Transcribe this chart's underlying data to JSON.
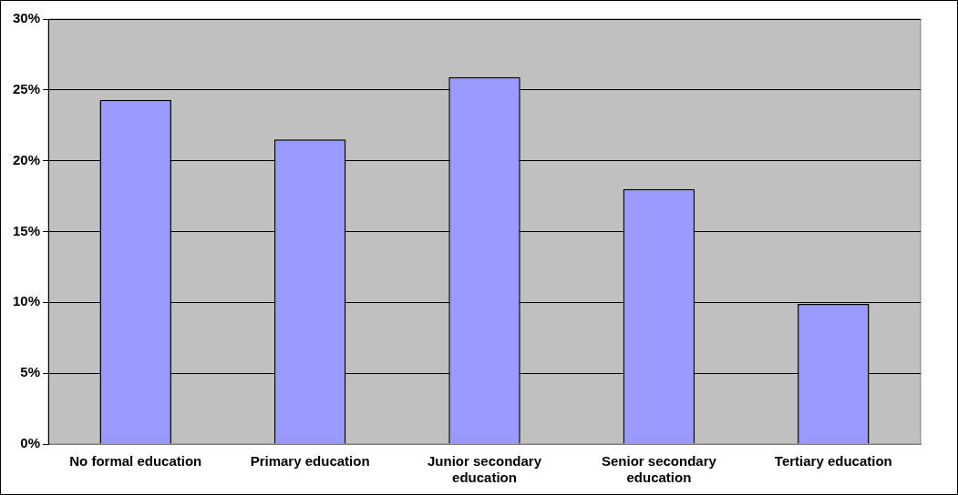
{
  "chart_data": {
    "type": "bar",
    "categories": [
      "No formal education",
      "Primary education",
      "Junior secondary education",
      "Senior secondary education",
      "Tertiary education"
    ],
    "values": [
      24.3,
      21.5,
      25.9,
      18.0,
      9.9
    ],
    "color": "#9999ff",
    "ylim": [
      0,
      30
    ],
    "yticks": [
      {
        "value": 0,
        "label": "0%"
      },
      {
        "value": 5,
        "label": "5%"
      },
      {
        "value": 10,
        "label": "10%"
      },
      {
        "value": 15,
        "label": "15%"
      },
      {
        "value": 20,
        "label": "20%"
      },
      {
        "value": 25,
        "label": "25%"
      },
      {
        "value": 30,
        "label": "30%"
      }
    ],
    "grid": "y",
    "legend": false
  }
}
